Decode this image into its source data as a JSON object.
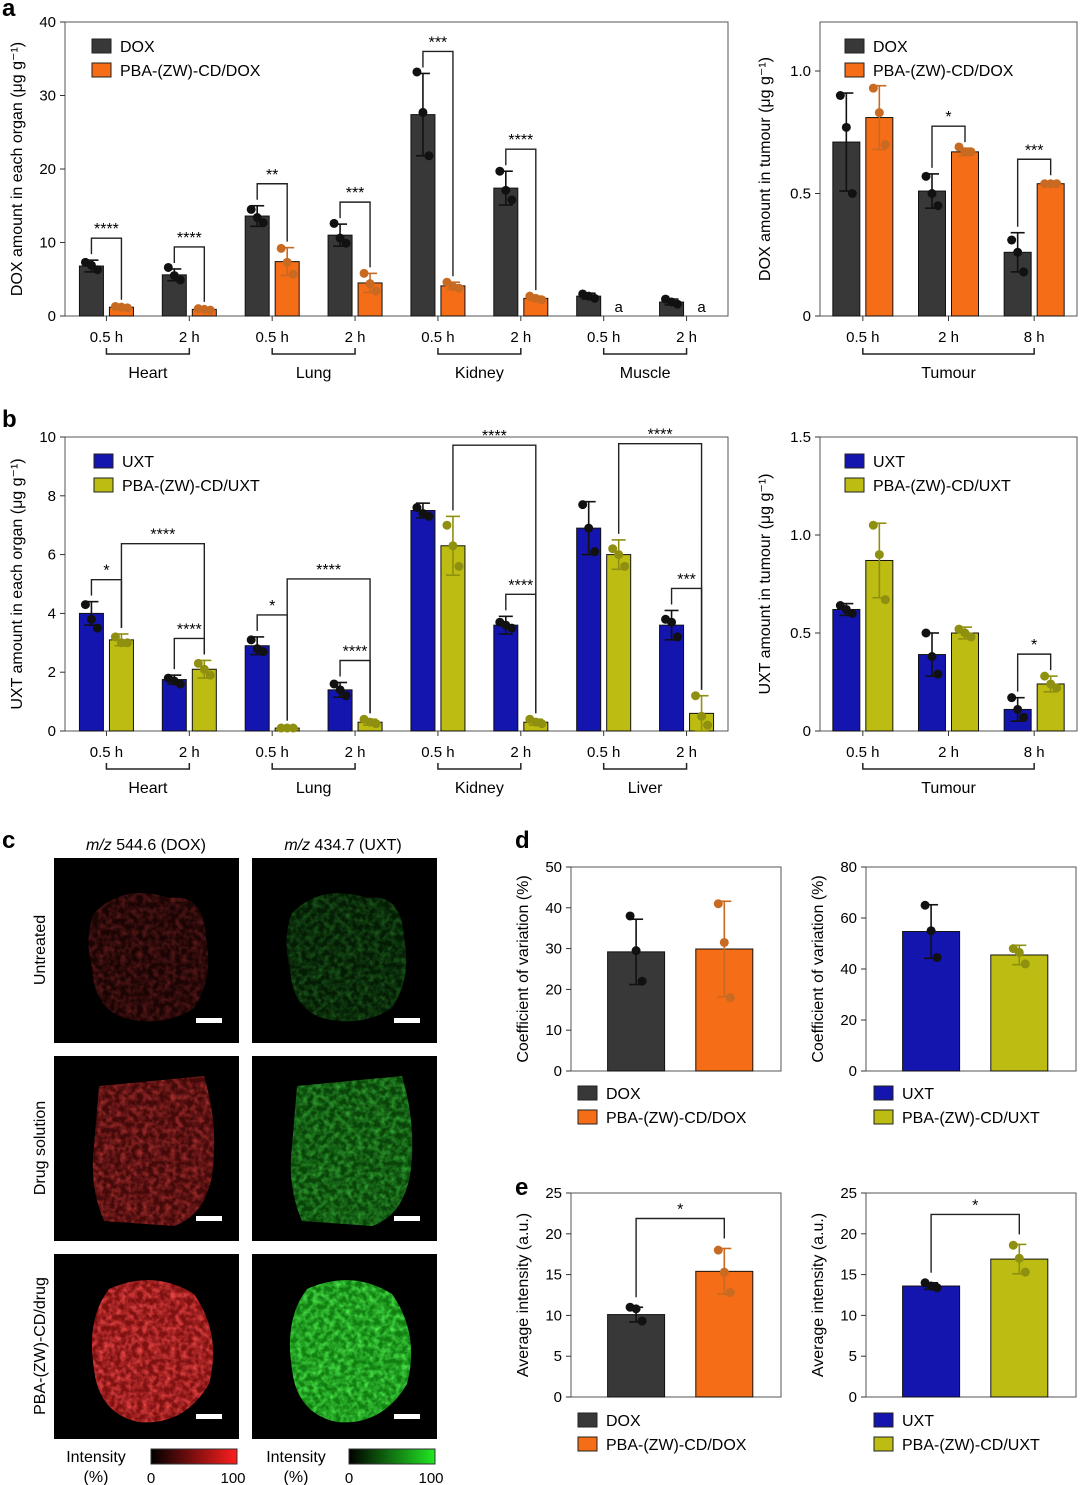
{
  "panel_labels": [
    "a",
    "b",
    "c",
    "d",
    "e"
  ],
  "chart_data": [
    {
      "id": "a_left",
      "type": "bar",
      "ylabel": "DOX amount in each organ (μg g⁻¹)",
      "ylim": [
        0,
        40
      ],
      "yticks": [
        0,
        10,
        20,
        30,
        40
      ],
      "groups": [
        "Heart",
        "Lung",
        "Kidney",
        "Muscle"
      ],
      "categories": [
        "0.5 h",
        "2 h",
        "0.5 h",
        "2 h",
        "0.5 h",
        "2 h",
        "0.5 h",
        "2 h"
      ],
      "legend": "top-left",
      "series": [
        {
          "name": "DOX",
          "color": "#383838",
          "values": [
            6.8,
            5.6,
            13.6,
            11.0,
            27.4,
            17.4,
            2.7,
            1.9
          ],
          "err": [
            0.8,
            0.8,
            1.4,
            1.5,
            5.6,
            2.3,
            0.4,
            0.4
          ],
          "points": [
            [
              7.3,
              6.9,
              6.3
            ],
            [
              6.6,
              5.5,
              4.9
            ],
            [
              14.5,
              13.4,
              12.7
            ],
            [
              12.6,
              10.6,
              9.9
            ],
            [
              33.2,
              27.7,
              21.8
            ],
            [
              19.7,
              17.1,
              15.8
            ],
            [
              3.0,
              2.7,
              2.4
            ],
            [
              2.3,
              1.9,
              1.6
            ]
          ]
        },
        {
          "name": "PBA-(ZW)-CD/DOX",
          "color": "#f56d16",
          "value_color": "#c86a22",
          "values": [
            1.2,
            0.9,
            7.4,
            4.5,
            4.1,
            2.4,
            null,
            null
          ],
          "err": [
            0.2,
            0.2,
            1.9,
            1.3,
            0.5,
            0.3,
            null,
            null
          ],
          "points": [
            [
              1.3,
              1.2,
              1.1
            ],
            [
              1.0,
              0.9,
              0.8
            ],
            [
              9.2,
              7.3,
              5.7
            ],
            [
              5.8,
              4.4,
              3.4
            ],
            [
              4.6,
              4.0,
              3.8
            ],
            [
              2.7,
              2.4,
              2.2
            ],
            null,
            null
          ]
        }
      ],
      "missing_marks": [
        {
          "index": 6,
          "text": "a"
        },
        {
          "index": 7,
          "text": "a"
        }
      ],
      "significance": [
        {
          "from": [
            0,
            0
          ],
          "to": [
            0,
            1
          ],
          "label": "****"
        },
        {
          "from": [
            1,
            0
          ],
          "to": [
            1,
            1
          ],
          "label": "****"
        },
        {
          "from": [
            2,
            0
          ],
          "to": [
            2,
            1
          ],
          "label": "**"
        },
        {
          "from": [
            3,
            0
          ],
          "to": [
            3,
            1
          ],
          "label": "***"
        },
        {
          "from": [
            4,
            0
          ],
          "to": [
            4,
            1
          ],
          "label": "***"
        },
        {
          "from": [
            5,
            0
          ],
          "to": [
            5,
            1
          ],
          "label": "****"
        }
      ]
    },
    {
      "id": "a_right",
      "type": "bar",
      "ylabel": "DOX amount in tumour (μg g⁻¹)",
      "ylim": [
        0,
        1.2
      ],
      "yticks": [
        "0",
        "0.5",
        "1.0"
      ],
      "groups": [
        "Tumour"
      ],
      "categories": [
        "0.5 h",
        "2 h",
        "8 h"
      ],
      "legend": "top-left",
      "series": [
        {
          "name": "DOX",
          "color": "#383838",
          "values": [
            0.71,
            0.51,
            0.26
          ],
          "err": [
            0.2,
            0.07,
            0.08
          ],
          "points": [
            [
              0.9,
              0.77,
              0.5
            ],
            [
              0.57,
              0.5,
              0.45
            ],
            [
              0.31,
              0.26,
              0.18
            ]
          ]
        },
        {
          "name": "PBA-(ZW)-CD/DOX",
          "color": "#f56d16",
          "value_color": "#c86a22",
          "values": [
            0.81,
            0.67,
            0.54
          ],
          "err": [
            0.13,
            0.015,
            0.01
          ],
          "points": [
            [
              0.93,
              0.83,
              0.7
            ],
            [
              0.69,
              0.67,
              0.67
            ],
            [
              0.54,
              0.54,
              0.54
            ]
          ]
        }
      ],
      "significance": [
        {
          "from": [
            1,
            0
          ],
          "to": [
            1,
            1
          ],
          "label": "*"
        },
        {
          "from": [
            2,
            0
          ],
          "to": [
            2,
            1
          ],
          "label": "***"
        }
      ]
    },
    {
      "id": "b_left",
      "type": "bar",
      "ylabel": "UXT amount in each organ (μg g⁻¹)",
      "ylim": [
        0,
        10
      ],
      "yticks": [
        0,
        2,
        4,
        6,
        8,
        10
      ],
      "groups": [
        "Heart",
        "Lung",
        "Kidney",
        "Liver"
      ],
      "categories": [
        "0.5 h",
        "2 h",
        "0.5 h",
        "2 h",
        "0.5 h",
        "2 h",
        "0.5 h",
        "2 h"
      ],
      "legend": "top-left",
      "series": [
        {
          "name": "UXT",
          "color": "#1414ae",
          "values": [
            4.0,
            1.75,
            2.9,
            1.4,
            7.5,
            3.6,
            6.9,
            3.6
          ],
          "err": [
            0.4,
            0.15,
            0.3,
            0.25,
            0.25,
            0.3,
            0.9,
            0.5
          ],
          "points": [
            [
              4.3,
              3.8,
              3.5
            ],
            [
              1.8,
              1.7,
              1.6
            ],
            [
              3.1,
              2.8,
              2.7
            ],
            [
              1.6,
              1.4,
              1.2
            ],
            [
              7.6,
              7.4,
              7.3
            ],
            [
              3.7,
              3.6,
              3.5
            ],
            [
              7.7,
              6.9,
              6.1
            ],
            [
              3.8,
              3.7,
              3.2
            ]
          ]
        },
        {
          "name": "PBA-(ZW)-CD/UXT",
          "color": "#bcbc12",
          "value_color": "#8f8f10",
          "values": [
            3.1,
            2.1,
            0.1,
            0.3,
            6.3,
            0.3,
            6.0,
            0.6
          ],
          "err": [
            0.2,
            0.3,
            0.05,
            0.1,
            1.0,
            0.1,
            0.5,
            0.6
          ],
          "points": [
            [
              3.2,
              3.0,
              3.0
            ],
            [
              2.3,
              2.1,
              1.9
            ],
            [
              0.1,
              0.1,
              0.1
            ],
            [
              0.4,
              0.3,
              0.25
            ],
            [
              7.0,
              6.3,
              5.6
            ],
            [
              0.4,
              0.3,
              0.25
            ],
            [
              6.2,
              6.0,
              5.6
            ],
            [
              1.2,
              0.5,
              0.2
            ]
          ]
        }
      ],
      "order_note": "series values are per x position; Lung 2 h PBA value is index 3 of original order",
      "significance": [
        {
          "from": [
            0,
            0
          ],
          "to": [
            0,
            1
          ],
          "label": "*"
        },
        {
          "from": [
            0,
            1
          ],
          "to": [
            1,
            1
          ],
          "label": "****"
        },
        {
          "from": [
            1,
            0
          ],
          "to": [
            1,
            1
          ],
          "label": "****"
        },
        {
          "from": [
            2,
            0
          ],
          "to": [
            2,
            1
          ],
          "label": "*"
        },
        {
          "from": [
            2,
            1
          ],
          "to": [
            3,
            1
          ],
          "label": "****"
        },
        {
          "from": [
            3,
            0
          ],
          "to": [
            3,
            1
          ],
          "label": "****"
        },
        {
          "from": [
            4,
            1
          ],
          "to": [
            5,
            1
          ],
          "label": "****"
        },
        {
          "from": [
            5,
            0
          ],
          "to": [
            5,
            1
          ],
          "label": "****"
        },
        {
          "from": [
            6,
            1
          ],
          "to": [
            7,
            1
          ],
          "label": "****"
        },
        {
          "from": [
            7,
            0
          ],
          "to": [
            7,
            1
          ],
          "label": "***"
        }
      ]
    },
    {
      "id": "b_right",
      "type": "bar",
      "ylabel": "UXT amount in tumour (μg g⁻¹)",
      "ylim": [
        0,
        1.5
      ],
      "yticks": [
        "0",
        "0.5",
        "1.0",
        "1.5"
      ],
      "groups": [
        "Tumour"
      ],
      "categories": [
        "0.5 h",
        "2 h",
        "8 h"
      ],
      "legend": "top-left",
      "series": [
        {
          "name": "UXT",
          "color": "#1414ae",
          "values": [
            0.62,
            0.39,
            0.11
          ],
          "err": [
            0.03,
            0.11,
            0.06
          ],
          "points": [
            [
              0.64,
              0.62,
              0.6
            ],
            [
              0.5,
              0.38,
              0.29
            ],
            [
              0.17,
              0.11,
              0.07
            ]
          ]
        },
        {
          "name": "PBA-(ZW)-CD/UXT",
          "color": "#bcbc12",
          "value_color": "#8f8f10",
          "values": [
            0.87,
            0.5,
            0.24
          ],
          "err": [
            0.19,
            0.03,
            0.04
          ],
          "points": [
            [
              1.05,
              0.9,
              0.67
            ],
            [
              0.52,
              0.5,
              0.48
            ],
            [
              0.28,
              0.24,
              0.22
            ]
          ]
        }
      ],
      "significance": [
        {
          "from": [
            2,
            0
          ],
          "to": [
            2,
            1
          ],
          "label": "*"
        }
      ]
    },
    {
      "id": "d_left",
      "type": "bar",
      "ylabel": "Coefficient of variation (%)",
      "ylim": [
        0,
        50
      ],
      "yticks": [
        0,
        10,
        20,
        30,
        40,
        50
      ],
      "legend": "bottom",
      "series": [
        {
          "name": "DOX",
          "color": "#383838",
          "value": 29.2,
          "err": 8.0,
          "points": [
            38.0,
            29.5,
            22.0
          ]
        },
        {
          "name": "PBA-(ZW)-CD/DOX",
          "color": "#f56d16",
          "value_color": "#c86a22",
          "value": 29.9,
          "err": 11.7,
          "points": [
            41.0,
            31.5,
            18.0
          ]
        }
      ]
    },
    {
      "id": "d_right",
      "type": "bar",
      "ylabel": "Coefficient of variation (%)",
      "ylim": [
        0,
        80
      ],
      "yticks": [
        0,
        20,
        40,
        60,
        80
      ],
      "legend": "bottom",
      "series": [
        {
          "name": "UXT",
          "color": "#1414ae",
          "value": 54.7,
          "err": 10.5,
          "points": [
            65.0,
            55.0,
            44.5
          ]
        },
        {
          "name": "PBA-(ZW)-CD/UXT",
          "color": "#bcbc12",
          "value_color": "#8f8f10",
          "value": 45.5,
          "err": 3.8,
          "points": [
            48.0,
            46.5,
            42.0
          ]
        }
      ]
    },
    {
      "id": "e_left",
      "type": "bar",
      "ylabel": "Average intensity (a.u.)",
      "ylim": [
        0,
        25
      ],
      "yticks": [
        0,
        5,
        10,
        15,
        20,
        25
      ],
      "legend": "bottom",
      "series": [
        {
          "name": "DOX",
          "color": "#383838",
          "value": 10.1,
          "err": 0.9,
          "points": [
            11.0,
            10.8,
            9.3
          ]
        },
        {
          "name": "PBA-(ZW)-CD/DOX",
          "color": "#f56d16",
          "value_color": "#c86a22",
          "value": 15.4,
          "err": 2.8,
          "points": [
            18.0,
            15.3,
            12.8
          ]
        }
      ],
      "significance": [
        {
          "label": "*"
        }
      ]
    },
    {
      "id": "e_right",
      "type": "bar",
      "ylabel": "Average intensity (a.u.)",
      "ylim": [
        0,
        25
      ],
      "yticks": [
        0,
        5,
        10,
        15,
        20,
        25
      ],
      "legend": "bottom",
      "series": [
        {
          "name": "UXT",
          "color": "#1414ae",
          "value": 13.6,
          "err": 0.4,
          "points": [
            14.0,
            13.6,
            13.4
          ]
        },
        {
          "name": "PBA-(ZW)-CD/UXT",
          "color": "#bcbc12",
          "value_color": "#8f8f10",
          "value": 16.9,
          "err": 1.8,
          "points": [
            18.6,
            17.0,
            15.3
          ]
        }
      ],
      "significance": [
        {
          "label": "*"
        }
      ]
    }
  ],
  "panel_c": {
    "columns": [
      {
        "prefix": "m/z",
        "label": " 544.6 (DOX)",
        "color": "red"
      },
      {
        "prefix": "m/z",
        "label": " 434.7 (UXT)",
        "color": "green"
      }
    ],
    "rows": [
      "Untreated",
      "Drug solution",
      "PBA-(ZW)-CD/drug"
    ],
    "intensity": [
      0.18,
      0.45,
      0.85
    ],
    "colorbars": [
      {
        "title_line1": "Intensity",
        "title_line2": "(%)",
        "min": "0",
        "max": "100",
        "color": "red"
      },
      {
        "title_line1": "Intensity",
        "title_line2": "(%)",
        "min": "0",
        "max": "100",
        "color": "green"
      }
    ]
  }
}
